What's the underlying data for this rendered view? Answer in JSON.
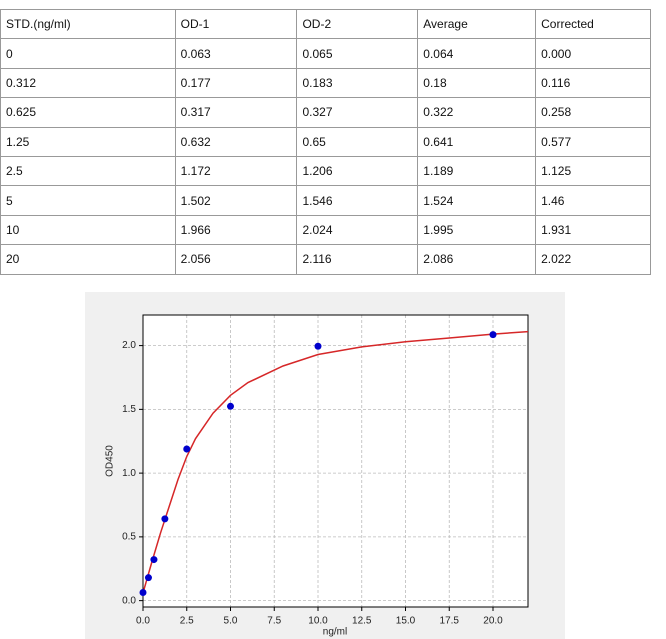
{
  "table": {
    "header": [
      "STD.(ng/ml)",
      "OD-1",
      "OD-2",
      "Average",
      "Corrected"
    ],
    "rows": [
      [
        "0",
        "0.063",
        "0.065",
        "0.064",
        "0.000"
      ],
      [
        "0.312",
        "0.177",
        "0.183",
        "0.18",
        "0.116"
      ],
      [
        "0.625",
        "0.317",
        "0.327",
        "0.322",
        "0.258"
      ],
      [
        "1.25",
        "0.632",
        "0.65",
        "0.641",
        "0.577"
      ],
      [
        "2.5",
        "1.172",
        "1.206",
        "1.189",
        "1.125"
      ],
      [
        "5",
        "1.502",
        "1.546",
        "1.524",
        "1.46"
      ],
      [
        "10",
        "1.966",
        "2.024",
        "1.995",
        "1.931"
      ],
      [
        "20",
        "2.056",
        "2.116",
        "2.086",
        "2.022"
      ]
    ]
  },
  "chart_data": {
    "type": "scatter",
    "xlabel": "ng/ml",
    "ylabel": "OD450",
    "points": {
      "color": "#0000cc",
      "x": [
        0,
        0.312,
        0.625,
        1.25,
        2.5,
        5,
        10,
        20
      ],
      "values": [
        0.064,
        0.18,
        0.322,
        0.641,
        1.189,
        1.524,
        1.995,
        2.086
      ]
    },
    "curve": {
      "color": "#d62728",
      "x": [
        0,
        0.5,
        1,
        1.5,
        2,
        2.5,
        3,
        4,
        5,
        6,
        8,
        10,
        12.5,
        15,
        17.5,
        20,
        22
      ],
      "values": [
        0.06,
        0.3,
        0.53,
        0.74,
        0.95,
        1.13,
        1.27,
        1.47,
        1.61,
        1.71,
        1.84,
        1.93,
        1.99,
        2.03,
        2.06,
        2.09,
        2.11
      ]
    },
    "xlim": [
      0,
      22
    ],
    "ylim": [
      -0.05,
      2.24
    ],
    "xticks": [
      {
        "value": 0,
        "label": "0.0"
      },
      {
        "value": 2.5,
        "label": "2.5"
      },
      {
        "value": 5,
        "label": "5.0"
      },
      {
        "value": 7.5,
        "label": "7.5"
      },
      {
        "value": 10,
        "label": "10.0"
      },
      {
        "value": 12.5,
        "label": "12.5"
      },
      {
        "value": 15,
        "label": "15.0"
      },
      {
        "value": 17.5,
        "label": "17.5"
      },
      {
        "value": 20,
        "label": "20.0"
      }
    ],
    "yticks": [
      {
        "value": 0,
        "label": "0.0"
      },
      {
        "value": 0.5,
        "label": "0.5"
      },
      {
        "value": 1,
        "label": "1.0"
      },
      {
        "value": 1.5,
        "label": "1.5"
      },
      {
        "value": 2,
        "label": "2.0"
      }
    ],
    "grid": true
  }
}
